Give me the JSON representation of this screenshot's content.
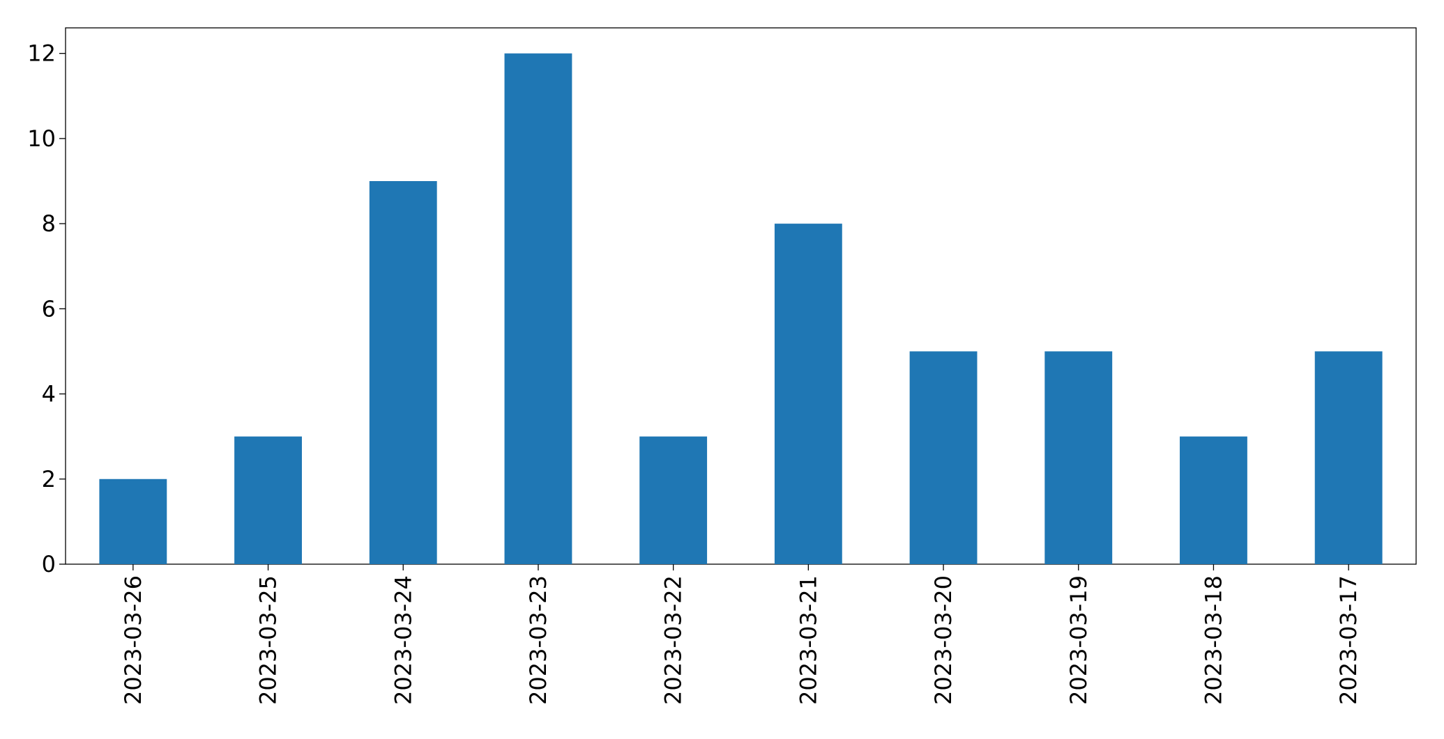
{
  "chart_data": {
    "type": "bar",
    "categories": [
      "2023-03-26",
      "2023-03-25",
      "2023-03-24",
      "2023-03-23",
      "2023-03-22",
      "2023-03-21",
      "2023-03-20",
      "2023-03-19",
      "2023-03-18",
      "2023-03-17"
    ],
    "values": [
      2,
      3,
      9,
      12,
      3,
      8,
      5,
      5,
      3,
      5
    ],
    "color": "#1f77b4",
    "ylim": [
      0,
      12.6
    ],
    "yticks": [
      0,
      2,
      4,
      6,
      8,
      10,
      12
    ],
    "grid": false
  }
}
